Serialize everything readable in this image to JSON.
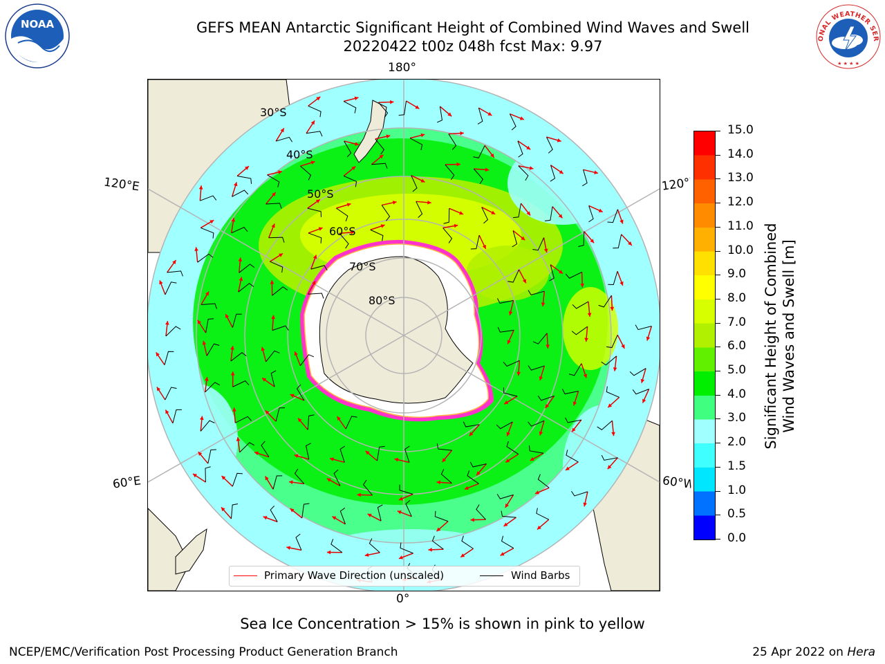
{
  "title": {
    "line1": "GEFS MEAN Antarctic Significant Height of Combined Wind Waves and Swell",
    "line2": "20220422 t00z 048h fcst   Max: 9.97"
  },
  "map": {
    "projection": "south-polar-stereographic",
    "longitude_labels": {
      "top": "180°",
      "bottom": "0°",
      "upper_left": "120°E",
      "lower_left": "60°E",
      "upper_right": "120°W",
      "lower_right": "60°W"
    },
    "latitude_labels": [
      "30°S",
      "40°S",
      "50°S",
      "60°S",
      "70°S",
      "80°S"
    ],
    "colors": {
      "land": "#efebd9",
      "ocean_outside": "#ffffff",
      "grid": "#b4b4b4",
      "ice_edge": "#ff33cc",
      "ice_inner": "#ffb347"
    }
  },
  "legend": {
    "wave_direction_label": "Primary Wave Direction (unscaled)",
    "wave_direction_color": "#ff0000",
    "wind_barbs_label": "Wind Barbs",
    "wind_barbs_color": "#000000"
  },
  "colorbar": {
    "title_line1": "Significant Height of Combined",
    "title_line2": "Wind Waves and Swell [m]",
    "ticks": [
      "0.0",
      "0.5",
      "1.0",
      "1.5",
      "2.0",
      "3.0",
      "4.0",
      "5.0",
      "6.0",
      "7.0",
      "8.0",
      "9.0",
      "10.0",
      "11.0",
      "12.0",
      "13.0",
      "14.0",
      "15.0"
    ],
    "colors": [
      "#0000ff",
      "#0072ff",
      "#00e6ff",
      "#40ffff",
      "#a0ffff",
      "#40ff80",
      "#00ee00",
      "#60f000",
      "#b0f000",
      "#d8ff00",
      "#ffff00",
      "#ffe000",
      "#ffb000",
      "#ff8c00",
      "#ff6000",
      "#ff3000",
      "#ff0000"
    ]
  },
  "notes": {
    "sea_ice": "Sea Ice Concentration > 15% is shown in pink to yellow"
  },
  "footer": {
    "left": "NCEP/EMC/Verification Post Processing Product Generation Branch",
    "date": "25 Apr 2022 on",
    "machine": "Hera"
  },
  "logos": {
    "noaa_text": "NOAA",
    "nws_text": "NATIONAL WEATHER SERVICE"
  }
}
